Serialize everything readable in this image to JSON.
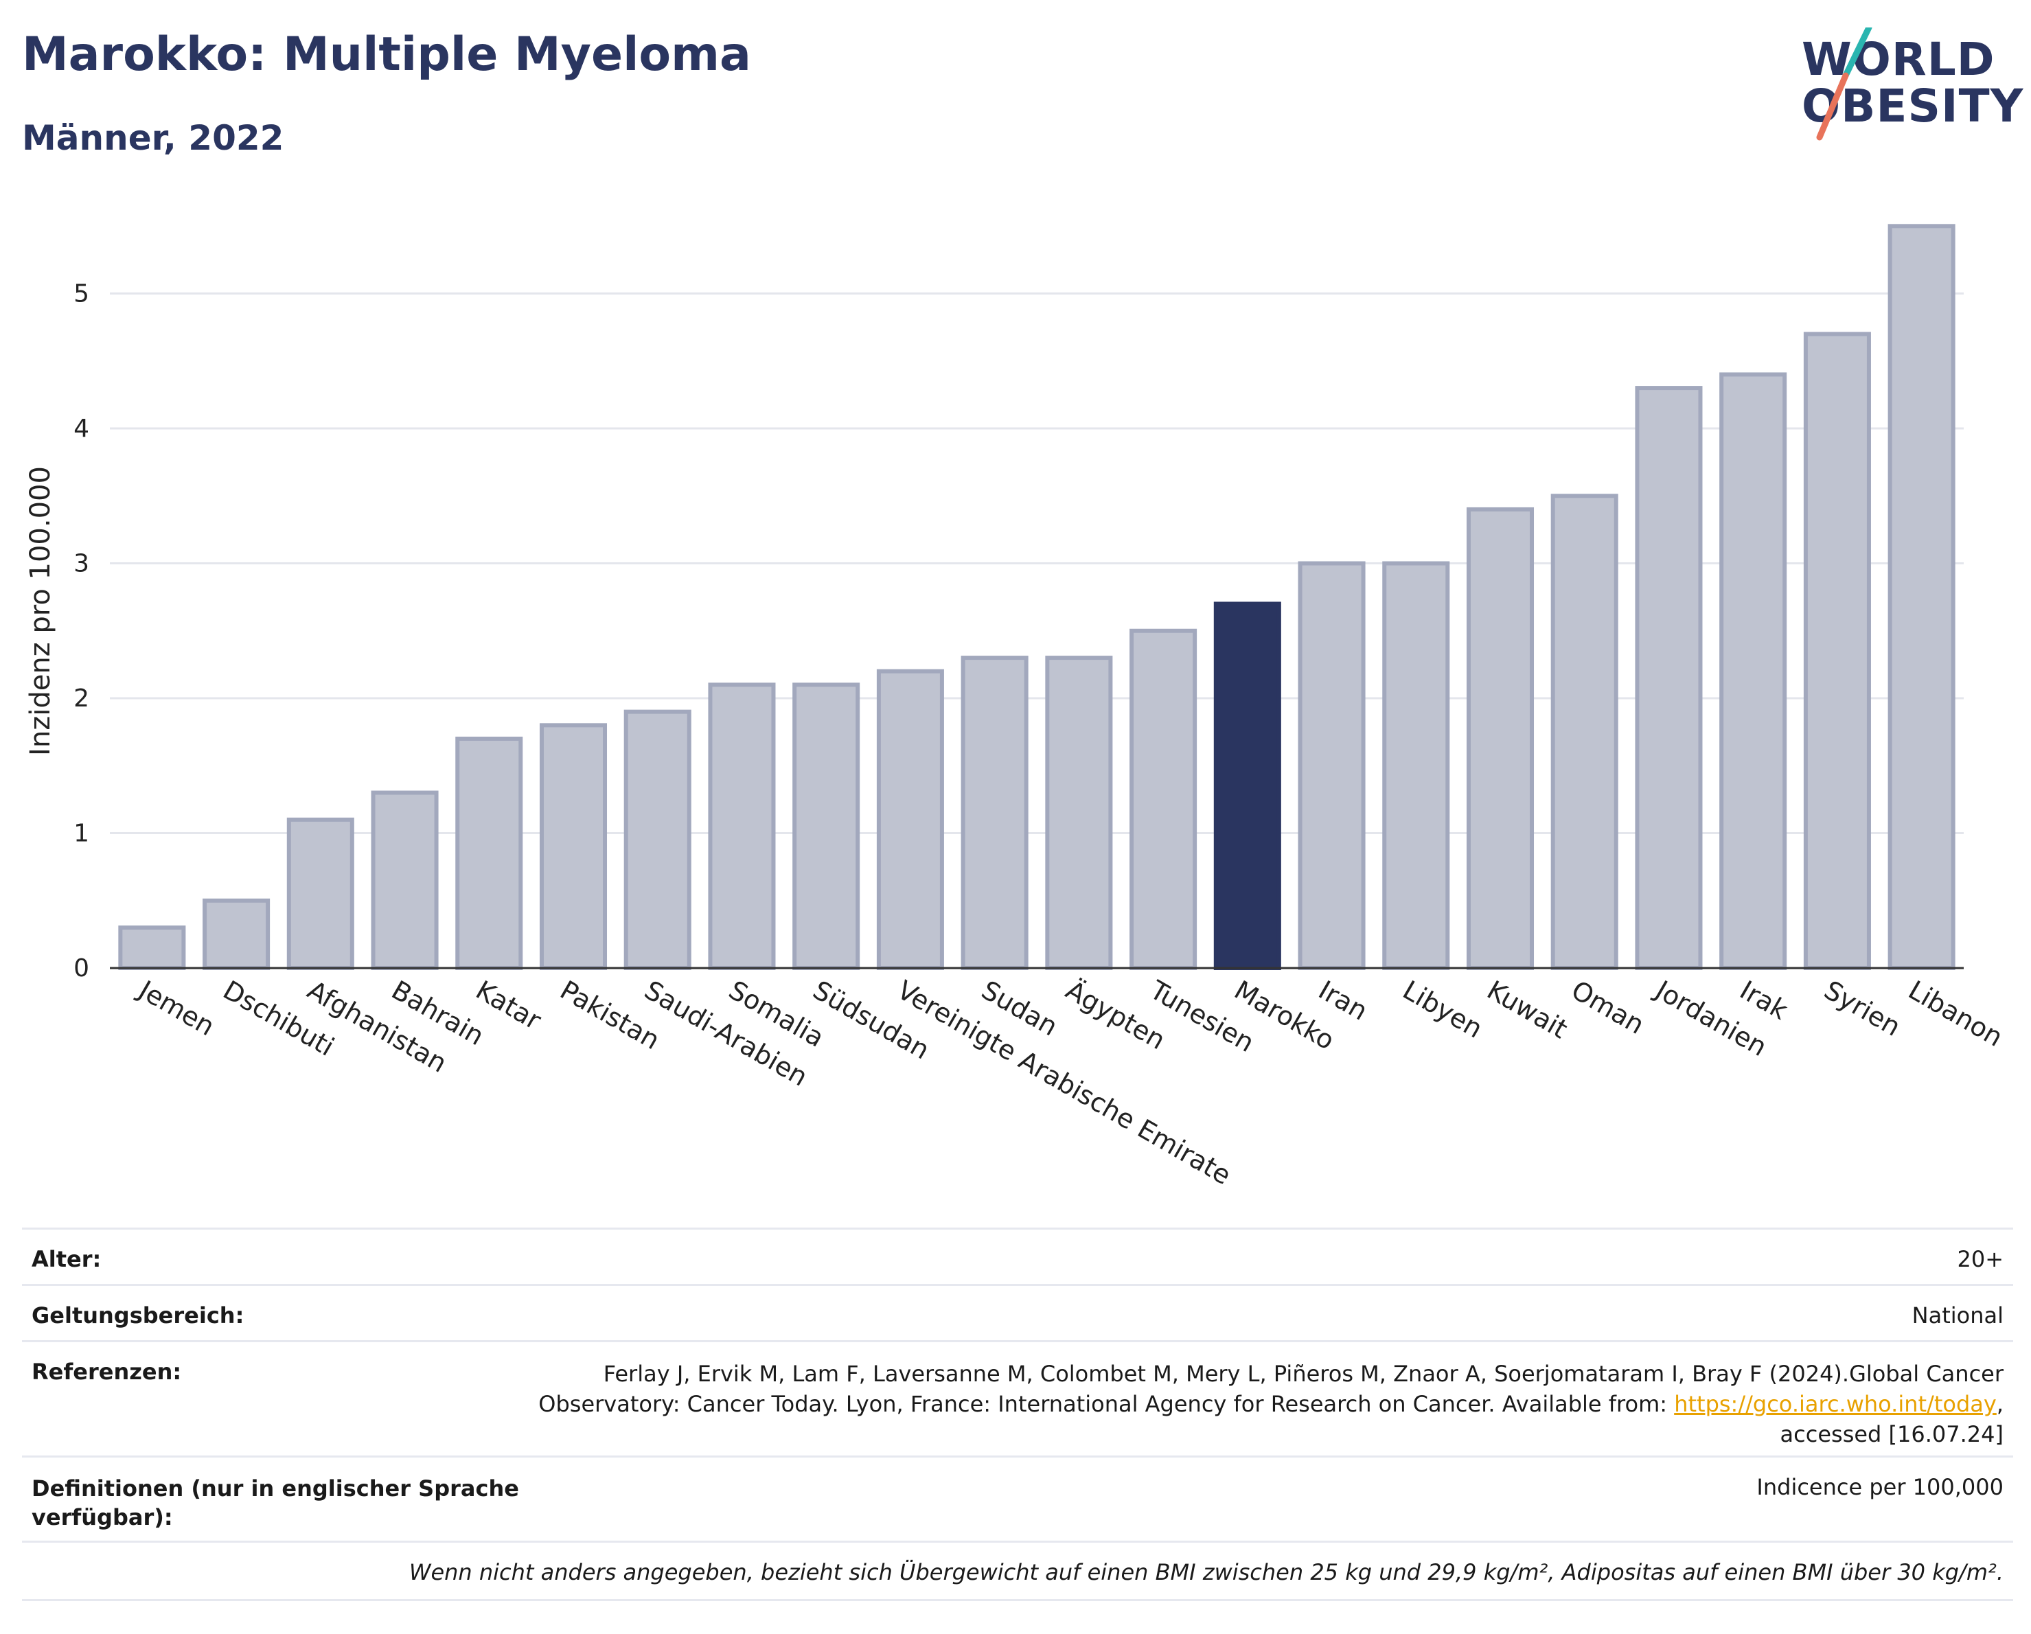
{
  "header": {
    "title": "Marokko: Multiple Myeloma",
    "subtitle": "Männer, 2022"
  },
  "logo": {
    "line1": "WORLD",
    "line2": "OBESITY",
    "colors": {
      "navy": "#2a3560",
      "teal": "#2ab5b0",
      "coral": "#e8735a"
    }
  },
  "chart_data": {
    "type": "bar",
    "ylabel": "Inzidenz pro 100.000",
    "ylim": [
      0,
      5.7
    ],
    "yticks": [
      0,
      1,
      2,
      3,
      4,
      5
    ],
    "categories": [
      "Jemen",
      "Dschibuti",
      "Afghanistan",
      "Bahrain",
      "Katar",
      "Pakistan",
      "Saudi-Arabien",
      "Somalia",
      "Südsudan",
      "Vereinigte Arabische Emirate",
      "Sudan",
      "Ägypten",
      "Tunesien",
      "Marokko",
      "Iran",
      "Libyen",
      "Kuwait",
      "Oman",
      "Jordanien",
      "Irak",
      "Syrien",
      "Libanon"
    ],
    "values": [
      0.3,
      0.5,
      1.1,
      1.3,
      1.7,
      1.8,
      1.9,
      2.1,
      2.1,
      2.2,
      2.3,
      2.3,
      2.5,
      2.7,
      3.0,
      3.0,
      3.4,
      3.5,
      4.3,
      4.4,
      4.7,
      5.5
    ],
    "highlight": "Marokko",
    "colors": {
      "bar": "#bfc3d0",
      "bar_border": "#a2a8bd",
      "highlight": "#2a3560",
      "grid": "#e4e6ec",
      "axis": "#333333"
    },
    "grid": true
  },
  "info": {
    "rows": [
      {
        "key": "Alter:",
        "value": "20+"
      },
      {
        "key": "Geltungsbereich:",
        "value": "National"
      },
      {
        "key": "Referenzen:",
        "value_lines": [
          "Ferlay J, Ervik M, Lam F, Laversanne M, Colombet M, Mery L, Piñeros M, Znaor A, Soerjomataram I, Bray F (2024).Global Cancer",
          "Observatory: Cancer Today. Lyon, France: International Agency for Research on Cancer. Available from: ",
          "accessed [16.07.24]"
        ],
        "link": "https://gco.iarc.who.int/today",
        "link_suffix": ","
      },
      {
        "key_lines": [
          "Definitionen (nur in englischer Sprache",
          "verfügbar):"
        ],
        "value": "Indicence per 100,000"
      }
    ],
    "note": "Wenn nicht anders angegeben, bezieht sich Übergewicht auf einen BMI zwischen 25 kg und 29,9 kg/m², Adipositas auf einen BMI über 30 kg/m²."
  }
}
